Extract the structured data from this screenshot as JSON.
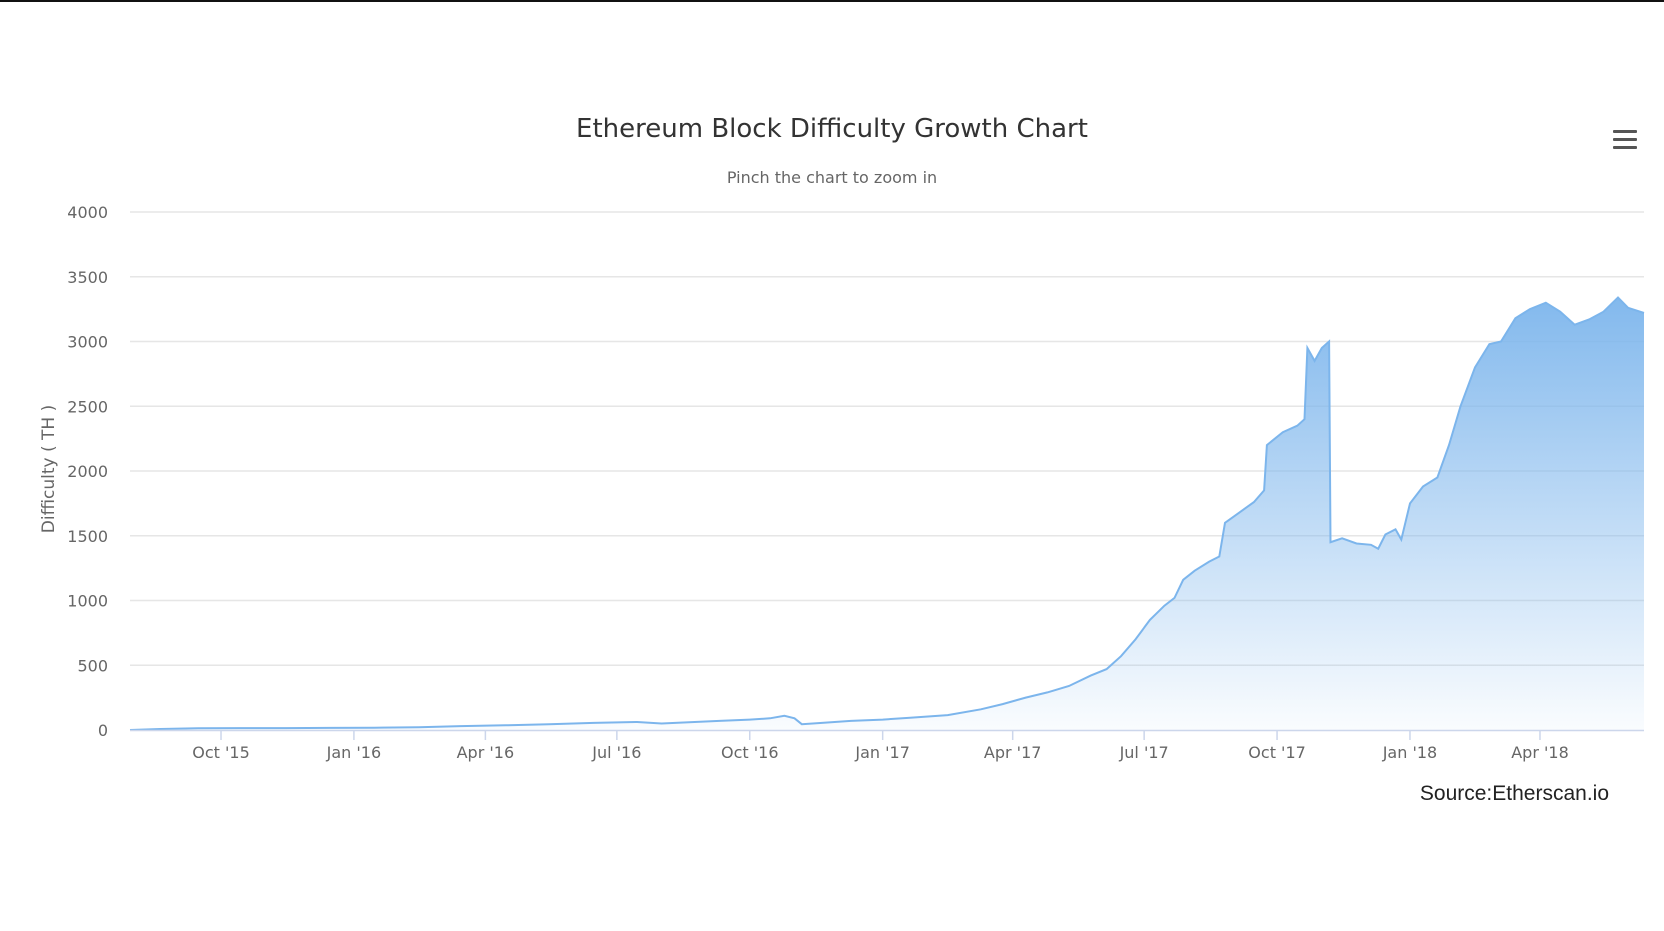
{
  "chart_menu_icon": "hamburger-menu-icon",
  "source_note": "Source:Etherscan.io",
  "chart_data": {
    "type": "area",
    "title": "Ethereum Block Difficulty Growth Chart",
    "subtitle": "Pinch the chart to zoom in",
    "ylabel": "Difficulty ( TH )",
    "xlabel": "",
    "ylim": [
      0,
      4000
    ],
    "yticks": [
      0,
      500,
      1000,
      1500,
      2000,
      2500,
      3000,
      3500,
      4000
    ],
    "xlim": [
      "2015-07-30",
      "2018-06-12"
    ],
    "xticks": [
      {
        "date": "2015-10-01",
        "label": "Oct '15"
      },
      {
        "date": "2016-01-01",
        "label": "Jan '16"
      },
      {
        "date": "2016-04-01",
        "label": "Apr '16"
      },
      {
        "date": "2016-07-01",
        "label": "Jul '16"
      },
      {
        "date": "2016-10-01",
        "label": "Oct '16"
      },
      {
        "date": "2017-01-01",
        "label": "Jan '17"
      },
      {
        "date": "2017-04-01",
        "label": "Apr '17"
      },
      {
        "date": "2017-07-01",
        "label": "Jul '17"
      },
      {
        "date": "2017-10-01",
        "label": "Oct '17"
      },
      {
        "date": "2018-01-01",
        "label": "Jan '18"
      },
      {
        "date": "2018-04-01",
        "label": "Apr '18"
      }
    ],
    "grid": true,
    "legend": "none",
    "colors": {
      "line": "#7cb5ec",
      "fill_top": "#7cb5ec",
      "fill_bottom": "#ffffff",
      "grid": "#e6e6e6",
      "axis": "#ccd6eb"
    },
    "series": [
      {
        "points": [
          [
            "2015-07-30",
            0
          ],
          [
            "2015-08-20",
            8
          ],
          [
            "2015-09-15",
            14
          ],
          [
            "2015-10-15",
            15
          ],
          [
            "2015-11-15",
            15
          ],
          [
            "2015-12-15",
            16
          ],
          [
            "2016-01-15",
            18
          ],
          [
            "2016-02-15",
            22
          ],
          [
            "2016-03-15",
            30
          ],
          [
            "2016-04-15",
            36
          ],
          [
            "2016-05-15",
            45
          ],
          [
            "2016-06-15",
            55
          ],
          [
            "2016-07-15",
            62
          ],
          [
            "2016-08-01",
            50
          ],
          [
            "2016-08-20",
            60
          ],
          [
            "2016-09-10",
            70
          ],
          [
            "2016-10-01",
            80
          ],
          [
            "2016-10-15",
            90
          ],
          [
            "2016-10-25",
            110
          ],
          [
            "2016-11-01",
            90
          ],
          [
            "2016-11-06",
            45
          ],
          [
            "2016-11-20",
            55
          ],
          [
            "2016-12-10",
            70
          ],
          [
            "2017-01-01",
            80
          ],
          [
            "2017-01-20",
            95
          ],
          [
            "2017-02-15",
            115
          ],
          [
            "2017-03-10",
            160
          ],
          [
            "2017-03-25",
            200
          ],
          [
            "2017-04-10",
            250
          ],
          [
            "2017-04-25",
            290
          ],
          [
            "2017-05-10",
            340
          ],
          [
            "2017-05-25",
            420
          ],
          [
            "2017-06-05",
            470
          ],
          [
            "2017-06-15",
            570
          ],
          [
            "2017-06-25",
            700
          ],
          [
            "2017-07-05",
            850
          ],
          [
            "2017-07-15",
            960
          ],
          [
            "2017-07-22",
            1020
          ],
          [
            "2017-07-28",
            1160
          ],
          [
            "2017-08-05",
            1230
          ],
          [
            "2017-08-15",
            1300
          ],
          [
            "2017-08-22",
            1340
          ],
          [
            "2017-08-26",
            1600
          ],
          [
            "2017-09-05",
            1680
          ],
          [
            "2017-09-15",
            1760
          ],
          [
            "2017-09-22",
            1850
          ],
          [
            "2017-09-24",
            2200
          ],
          [
            "2017-10-05",
            2300
          ],
          [
            "2017-10-15",
            2350
          ],
          [
            "2017-10-20",
            2400
          ],
          [
            "2017-10-22",
            2950
          ],
          [
            "2017-10-27",
            2850
          ],
          [
            "2017-11-01",
            2950
          ],
          [
            "2017-11-06",
            3000
          ],
          [
            "2017-11-07",
            1450
          ],
          [
            "2017-11-15",
            1480
          ],
          [
            "2017-11-25",
            1440
          ],
          [
            "2017-12-05",
            1430
          ],
          [
            "2017-12-10",
            1400
          ],
          [
            "2017-12-15",
            1510
          ],
          [
            "2017-12-22",
            1550
          ],
          [
            "2017-12-26",
            1470
          ],
          [
            "2018-01-01",
            1750
          ],
          [
            "2018-01-10",
            1880
          ],
          [
            "2018-01-20",
            1950
          ],
          [
            "2018-01-28",
            2200
          ],
          [
            "2018-02-05",
            2500
          ],
          [
            "2018-02-15",
            2800
          ],
          [
            "2018-02-25",
            2980
          ],
          [
            "2018-03-05",
            3000
          ],
          [
            "2018-03-15",
            3180
          ],
          [
            "2018-03-25",
            3250
          ],
          [
            "2018-04-05",
            3300
          ],
          [
            "2018-04-15",
            3230
          ],
          [
            "2018-04-25",
            3130
          ],
          [
            "2018-05-05",
            3170
          ],
          [
            "2018-05-15",
            3230
          ],
          [
            "2018-05-25",
            3340
          ],
          [
            "2018-06-01",
            3260
          ],
          [
            "2018-06-12",
            3220
          ]
        ]
      }
    ]
  }
}
